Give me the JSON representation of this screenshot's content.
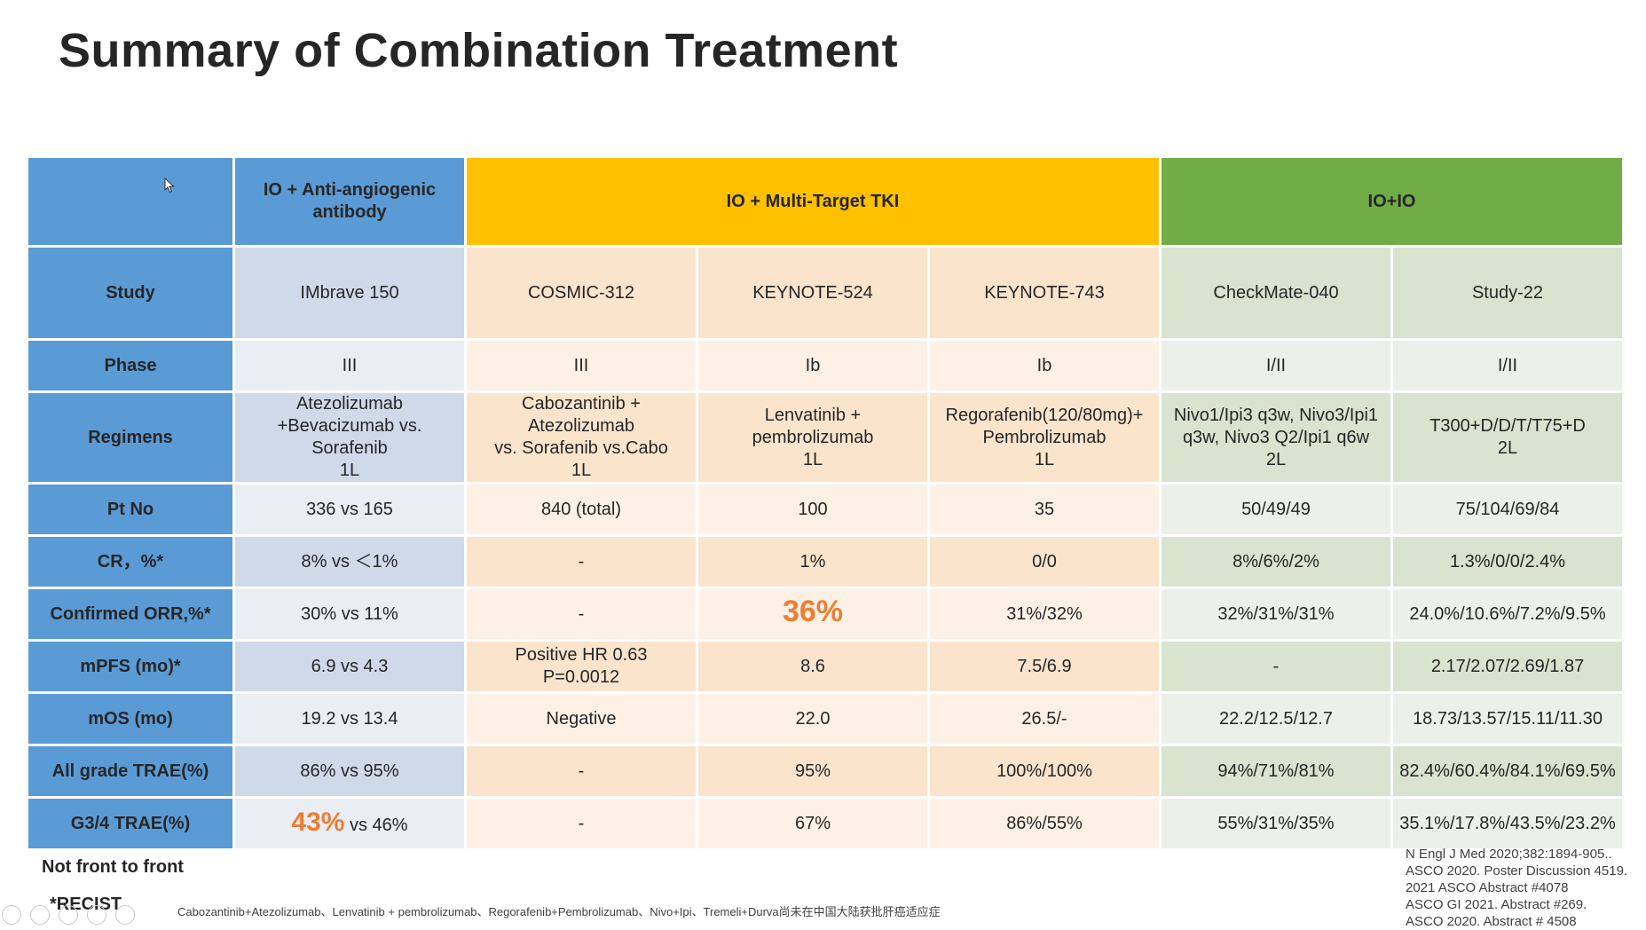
{
  "title": "Summary of Combination Treatment",
  "groups": {
    "anti_angiogenic": "IO + Anti-angiogenic antibody",
    "tki": "IO + Multi-Target TKI",
    "ioio": "IO+IO"
  },
  "rows": {
    "study": {
      "label": "Study",
      "values": [
        "IMbrave 150",
        "COSMIC-312",
        "KEYNOTE-524",
        "KEYNOTE-743",
        "CheckMate-040",
        "Study-22"
      ]
    },
    "phase": {
      "label": "Phase",
      "values": [
        "III",
        "III",
        "Ib",
        "Ib",
        "I/II",
        "I/II"
      ]
    },
    "regimens": {
      "label": "Regimens",
      "values": [
        [
          "Atezolizumab",
          "+Bevacizumab vs.",
          "Sorafenib",
          "1L"
        ],
        [
          "Cabozantinib +",
          "Atezolizumab",
          "vs. Sorafenib vs.Cabo",
          "1L"
        ],
        [
          "Lenvatinib +",
          "pembrolizumab",
          "1L"
        ],
        [
          "Regorafenib(120/80mg)+",
          "Pembrolizumab",
          "1L"
        ],
        [
          "Nivo1/Ipi3 q3w, Nivo3/Ipi1",
          "q3w, Nivo3 Q2/Ipi1 q6w",
          "2L"
        ],
        [
          "T300+D/D/T/T75+D",
          "2L"
        ]
      ]
    },
    "pt_no": {
      "label": "Pt No",
      "values": [
        "336 vs 165",
        "840 (total)",
        "100",
        "35",
        "50/49/49",
        "75/104/69/84"
      ]
    },
    "cr": {
      "label": "CR，%*",
      "values": [
        "8%  vs  ＜1%",
        "-",
        "1%",
        "0/0",
        "8%/6%/2%",
        "1.3%/0/0/2.4%"
      ]
    },
    "orr": {
      "label": "Confirmed ORR,%*",
      "values": [
        "30% vs  11%",
        "-",
        "36%",
        "31%/32%",
        "32%/31%/31%",
        "24.0%/10.6%/7.2%/9.5%"
      ]
    },
    "mpfs": {
      "label": "mPFS (mo)*",
      "values": [
        "6.9 vs 4.3",
        [
          "Positive HR 0.63",
          "P=0.0012"
        ],
        "8.6",
        "7.5/6.9",
        "-",
        "2.17/2.07/2.69/1.87"
      ]
    },
    "mos": {
      "label": "mOS (mo)",
      "values": [
        "19.2 vs 13.4",
        "Negative",
        "22.0",
        "26.5/-",
        "22.2/12.5/12.7",
        "18.73/13.57/15.11/11.30"
      ]
    },
    "trae_all": {
      "label": "All grade TRAE(%)",
      "values": [
        "86% vs 95%",
        "-",
        "95%",
        "100%/100%",
        "94%/71%/81%",
        "82.4%/60.4%/84.1%/69.5%"
      ]
    },
    "trae_g34": {
      "label": "G3/4 TRAE(%)",
      "values": [
        {
          "big": "43%",
          "rest": " vs 46%"
        },
        "-",
        "67%",
        "86%/55%",
        "55%/31%/35%",
        "35.1%/17.8%/43.5%/23.2%"
      ]
    }
  },
  "notes": {
    "not_front": "Not front to front",
    "recist": "*RECIST",
    "footnote": "Cabozantinib+Atezolizumab、Lenvatinib + pembrolizumab、Regorafenib+Pembrolizumab、Nivo+Ipi、Tremeli+Durva尚未在中国大陆获批肝癌适应症"
  },
  "references": [
    "N Engl J Med 2020;382:1894-905..",
    "ASCO 2020. Poster Discussion 4519.",
    "2021 ASCO Abstract #4078",
    "ASCO GI 2021. Abstract #269.",
    "ASCO 2020. Abstract # 4508"
  ],
  "colors": {
    "blue": "#5b9bd5",
    "yellow": "#ffc000",
    "green": "#70ad47",
    "highlight": "#ed7d31"
  }
}
